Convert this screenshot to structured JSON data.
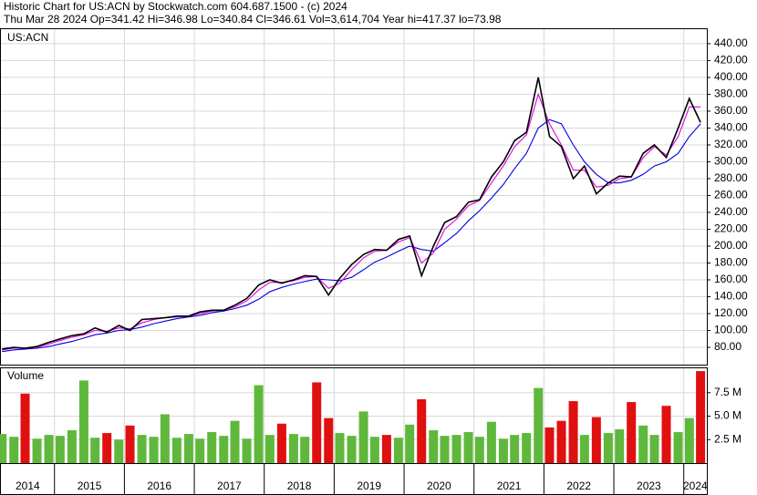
{
  "header": {
    "line1": "Historic Chart for US:ACN by Stockwatch.com 604.687.1500 - (c) 2024",
    "line2": "Thu Mar 28 2024   Op=341.42   Hi=346.98   Lo=340.84   Cl=346.61   Vol=3,614,704   Year hi=417.37   lo=73.98"
  },
  "chart_data": [
    {
      "type": "line",
      "title": "US:ACN",
      "x": [
        2014.25,
        2014.42,
        2014.58,
        2014.75,
        2014.92,
        2015.08,
        2015.25,
        2015.42,
        2015.58,
        2015.75,
        2015.92,
        2016.08,
        2016.25,
        2016.42,
        2016.58,
        2016.75,
        2016.92,
        2017.08,
        2017.25,
        2017.42,
        2017.58,
        2017.75,
        2017.92,
        2018.08,
        2018.25,
        2018.42,
        2018.58,
        2018.75,
        2018.92,
        2019.08,
        2019.25,
        2019.42,
        2019.58,
        2019.75,
        2019.92,
        2020.08,
        2020.25,
        2020.42,
        2020.58,
        2020.75,
        2020.92,
        2021.08,
        2021.25,
        2021.42,
        2021.58,
        2021.75,
        2021.92,
        2022.08,
        2022.25,
        2022.42,
        2022.58,
        2022.75,
        2022.92,
        2023.08,
        2023.25,
        2023.42,
        2023.58,
        2023.75,
        2023.92,
        2024.08,
        2024.24
      ],
      "series": [
        {
          "color": "#000000",
          "values": [
            78,
            80,
            79,
            81,
            86,
            90,
            94,
            96,
            103,
            98,
            106,
            100,
            113,
            114,
            115,
            117,
            117,
            122,
            124,
            124,
            130,
            138,
            154,
            160,
            156,
            160,
            165,
            164,
            142,
            162,
            178,
            190,
            196,
            195,
            208,
            212,
            165,
            200,
            228,
            235,
            252,
            255,
            282,
            300,
            325,
            335,
            400,
            330,
            318,
            280,
            295,
            262,
            275,
            283,
            282,
            310,
            320,
            305,
            340,
            375,
            346.61
          ]
        },
        {
          "color": "#e000e0",
          "values": [
            77,
            79,
            79,
            80,
            84,
            88,
            92,
            95,
            100,
            99,
            103,
            102,
            109,
            113,
            115,
            116,
            117,
            120,
            123,
            124,
            128,
            135,
            148,
            157,
            157,
            159,
            163,
            164,
            150,
            156,
            172,
            186,
            194,
            195,
            205,
            210,
            180,
            192,
            220,
            232,
            248,
            254,
            275,
            295,
            318,
            332,
            380,
            345,
            320,
            290,
            290,
            270,
            272,
            280,
            282,
            305,
            318,
            308,
            330,
            365,
            365
          ]
        },
        {
          "color": "#0000e0",
          "values": [
            75,
            77,
            78,
            79,
            81,
            84,
            87,
            91,
            95,
            97,
            100,
            101,
            104,
            108,
            111,
            114,
            116,
            118,
            121,
            123,
            126,
            130,
            137,
            146,
            151,
            155,
            158,
            161,
            160,
            159,
            163,
            172,
            181,
            187,
            194,
            200,
            196,
            194,
            204,
            215,
            230,
            242,
            257,
            273,
            292,
            310,
            340,
            350,
            345,
            320,
            300,
            285,
            275,
            275,
            278,
            285,
            295,
            300,
            310,
            330,
            345
          ]
        }
      ],
      "xlim": [
        2014.234,
        2024.33
      ],
      "xticks": [
        {
          "value": 2014,
          "label": "2014"
        },
        {
          "value": 2015,
          "label": "2015"
        },
        {
          "value": 2016,
          "label": "2016"
        },
        {
          "value": 2017,
          "label": "2017"
        },
        {
          "value": 2018,
          "label": "2018"
        },
        {
          "value": 2019,
          "label": "2019"
        },
        {
          "value": 2020,
          "label": "2020"
        },
        {
          "value": 2021,
          "label": "2021"
        },
        {
          "value": 2022,
          "label": "2022"
        },
        {
          "value": 2023,
          "label": "2023"
        },
        {
          "value": 2024,
          "label": "2024"
        }
      ],
      "ylim": [
        59.5,
        457.2
      ],
      "yticks": [
        {
          "value": 80,
          "label": "80.00"
        },
        {
          "value": 100,
          "label": "100.00"
        },
        {
          "value": 120,
          "label": "120.00"
        },
        {
          "value": 140,
          "label": "140.00"
        },
        {
          "value": 160,
          "label": "160.00"
        },
        {
          "value": 180,
          "label": "180.00"
        },
        {
          "value": 200,
          "label": "200.00"
        },
        {
          "value": 220,
          "label": "220.00"
        },
        {
          "value": 240,
          "label": "240.00"
        },
        {
          "value": 260,
          "label": "260.00"
        },
        {
          "value": 280,
          "label": "280.00"
        },
        {
          "value": 300,
          "label": "300.00"
        },
        {
          "value": 320,
          "label": "320.00"
        },
        {
          "value": 340,
          "label": "340.00"
        },
        {
          "value": 360,
          "label": "360.00"
        },
        {
          "value": 380,
          "label": "380.00"
        },
        {
          "value": 400,
          "label": "400.00"
        },
        {
          "value": 420,
          "label": "420.00"
        },
        {
          "value": 440,
          "label": "440.00"
        }
      ],
      "grid": true
    },
    {
      "type": "bar",
      "title": "Volume",
      "up_color": "#5fb83c",
      "down_color": "#e01010",
      "values": [
        3.1,
        2.8,
        7.4,
        2.6,
        3.0,
        2.9,
        3.5,
        8.8,
        2.7,
        3.2,
        2.5,
        4.0,
        3.0,
        2.8,
        5.2,
        2.7,
        3.1,
        2.6,
        3.3,
        2.9,
        4.5,
        2.6,
        8.3,
        3.0,
        4.2,
        3.1,
        2.8,
        8.6,
        4.8,
        3.2,
        2.9,
        5.5,
        2.8,
        3.0,
        2.7,
        4.1,
        6.8,
        3.5,
        2.9,
        3.0,
        3.3,
        2.8,
        4.4,
        2.6,
        3.0,
        3.2,
        8.0,
        3.8,
        4.5,
        6.6,
        3.0,
        4.9,
        3.2,
        3.6,
        6.5,
        4.0,
        3.0,
        6.1,
        3.3,
        4.8,
        9.8
      ],
      "ylim": [
        0,
        10.1
      ],
      "yticks": [
        {
          "value": 2.5,
          "label": "2.5 M"
        },
        {
          "value": 5,
          "label": "5.0 M"
        },
        {
          "value": 7.5,
          "label": "7.5 M"
        }
      ],
      "grid": true
    }
  ]
}
